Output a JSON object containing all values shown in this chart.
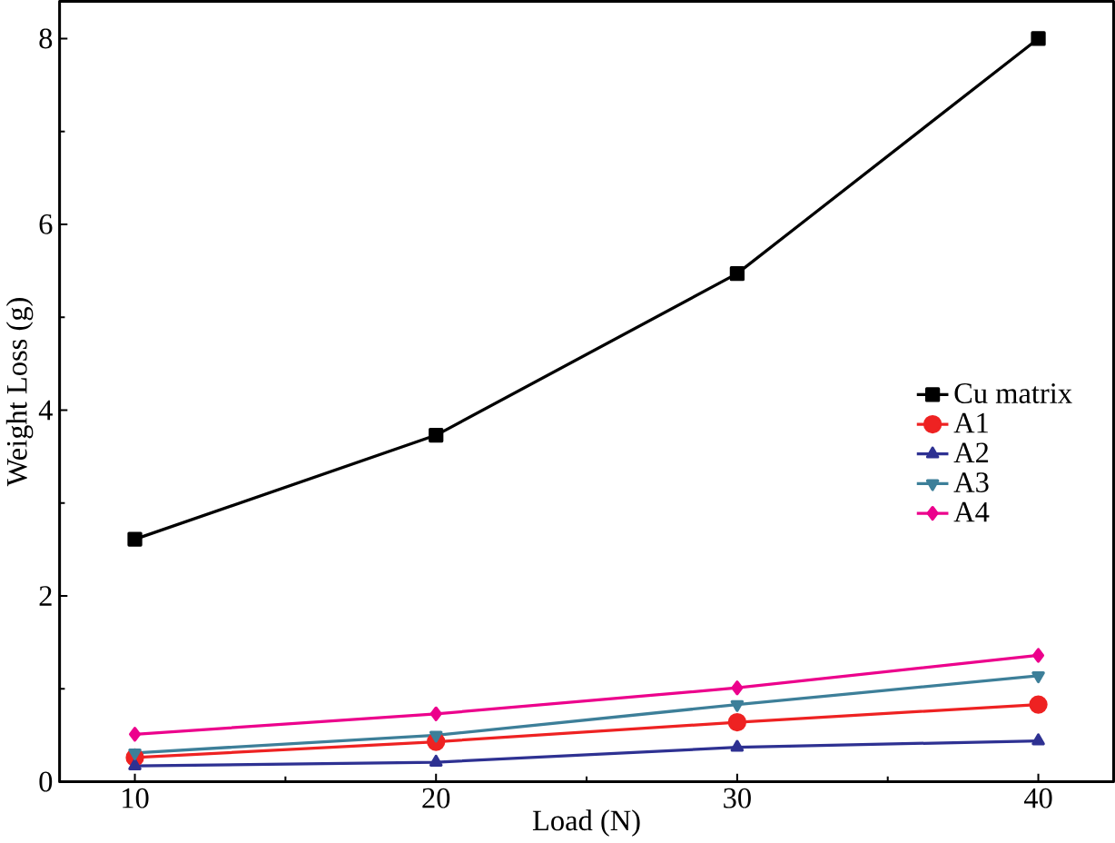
{
  "chart_data": {
    "type": "line",
    "xlabel": "Load (N)",
    "ylabel": "Weight Loss (g)",
    "x": [
      10,
      20,
      30,
      40
    ],
    "xlim": [
      7.5,
      42.5
    ],
    "ylim": [
      0,
      8.4
    ],
    "xticks": [
      10,
      20,
      30,
      40
    ],
    "yticks": [
      0,
      2,
      4,
      6,
      8
    ],
    "legend": "right",
    "line_style": "solid",
    "series": [
      {
        "name": "Cu matrix",
        "color": "#000000",
        "marker": "square",
        "values": [
          2.61,
          3.73,
          5.47,
          8.0
        ]
      },
      {
        "name": "A1",
        "color": "#ee2222",
        "marker": "circle",
        "values": [
          0.26,
          0.43,
          0.64,
          0.83
        ]
      },
      {
        "name": "A2",
        "color": "#2e3192",
        "marker": "triangle",
        "values": [
          0.17,
          0.21,
          0.37,
          0.44
        ]
      },
      {
        "name": "A3",
        "color": "#3d7f99",
        "marker": "triangle down",
        "values": [
          0.31,
          0.5,
          0.83,
          1.14
        ]
      },
      {
        "name": "A4",
        "color": "#ec008c",
        "marker": "diamond",
        "values": [
          0.51,
          0.73,
          1.01,
          1.36
        ]
      }
    ]
  }
}
